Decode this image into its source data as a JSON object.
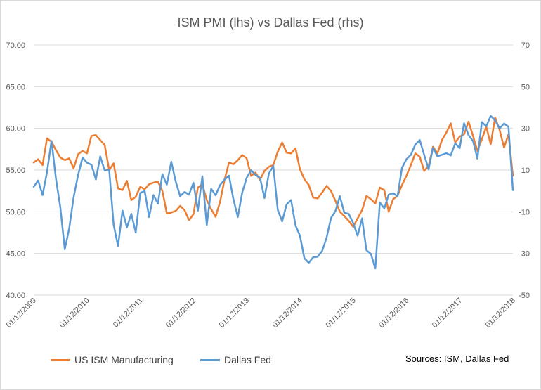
{
  "chart_data": {
    "type": "line",
    "title": "ISM PMI (lhs) vs Dallas Fed (rhs)",
    "x": [
      "01/12/2009",
      "01/01/2010",
      "01/02/2010",
      "01/03/2010",
      "01/04/2010",
      "01/05/2010",
      "01/06/2010",
      "01/07/2010",
      "01/08/2010",
      "01/09/2010",
      "01/10/2010",
      "01/11/2010",
      "01/12/2010",
      "01/01/2011",
      "01/02/2011",
      "01/03/2011",
      "01/04/2011",
      "01/05/2011",
      "01/06/2011",
      "01/07/2011",
      "01/08/2011",
      "01/09/2011",
      "01/10/2011",
      "01/11/2011",
      "01/12/2011",
      "01/01/2012",
      "01/02/2012",
      "01/03/2012",
      "01/04/2012",
      "01/05/2012",
      "01/06/2012",
      "01/07/2012",
      "01/08/2012",
      "01/09/2012",
      "01/10/2012",
      "01/11/2012",
      "01/12/2012",
      "01/01/2013",
      "01/02/2013",
      "01/03/2013",
      "01/04/2013",
      "01/05/2013",
      "01/06/2013",
      "01/07/2013",
      "01/08/2013",
      "01/09/2013",
      "01/10/2013",
      "01/11/2013",
      "01/12/2013",
      "01/01/2014",
      "01/02/2014",
      "01/03/2014",
      "01/04/2014",
      "01/05/2014",
      "01/06/2014",
      "01/07/2014",
      "01/08/2014",
      "01/09/2014",
      "01/10/2014",
      "01/11/2014",
      "01/12/2014",
      "01/01/2015",
      "01/02/2015",
      "01/03/2015",
      "01/04/2015",
      "01/05/2015",
      "01/06/2015",
      "01/07/2015",
      "01/08/2015",
      "01/09/2015",
      "01/10/2015",
      "01/11/2015",
      "01/12/2015",
      "01/01/2016",
      "01/02/2016",
      "01/03/2016",
      "01/04/2016",
      "01/05/2016",
      "01/06/2016",
      "01/07/2016",
      "01/08/2016",
      "01/09/2016",
      "01/10/2016",
      "01/11/2016",
      "01/12/2016",
      "01/01/2017",
      "01/02/2017",
      "01/03/2017",
      "01/04/2017",
      "01/05/2017",
      "01/06/2017",
      "01/07/2017",
      "01/08/2017",
      "01/09/2017",
      "01/10/2017",
      "01/11/2017",
      "01/12/2017",
      "01/01/2018",
      "01/02/2018",
      "01/03/2018",
      "01/04/2018",
      "01/05/2018",
      "01/06/2018",
      "01/07/2018",
      "01/08/2018",
      "01/09/2018",
      "01/10/2018",
      "01/11/2018",
      "01/12/2018"
    ],
    "x_tick_labels": [
      "01/12/2009",
      "01/12/2010",
      "01/12/2011",
      "01/12/2012",
      "01/12/2013",
      "01/12/2014",
      "01/12/2015",
      "01/12/2016",
      "01/12/2017",
      "01/12/2018"
    ],
    "y_left": {
      "ylim": [
        40,
        70
      ],
      "ticks": [
        "40.00",
        "45.00",
        "50.00",
        "55.00",
        "60.00",
        "65.00",
        "70.00"
      ]
    },
    "y_right": {
      "ylim": [
        -50,
        70
      ],
      "ticks": [
        "-50",
        "-30",
        "-10",
        "10",
        "30",
        "50",
        "70"
      ]
    },
    "grid": true,
    "legend_position": "bottom-left",
    "series": [
      {
        "name": "US ISM Manufacturing",
        "axis": "left",
        "color": "#ED7D31",
        "values": [
          55.9,
          56.3,
          55.6,
          58.8,
          58.4,
          57.4,
          56.5,
          56.2,
          56.4,
          55.2,
          56.9,
          57.3,
          57.0,
          59.1,
          59.2,
          58.6,
          58.0,
          55.0,
          55.8,
          52.8,
          52.6,
          53.7,
          51.4,
          51.8,
          53.0,
          52.7,
          53.3,
          53.5,
          53.6,
          52.5,
          49.8,
          49.9,
          50.1,
          50.7,
          50.2,
          49.0,
          49.7,
          52.9,
          53.3,
          51.4,
          50.3,
          49.4,
          51.2,
          53.8,
          55.9,
          55.7,
          56.2,
          56.8,
          56.4,
          54.3,
          54.7,
          53.8,
          54.9,
          55.4,
          55.6,
          57.2,
          58.3,
          57.1,
          57.0,
          57.6,
          55.1,
          53.9,
          53.2,
          51.7,
          51.6,
          52.3,
          53.1,
          52.5,
          51.3,
          50.0,
          49.5,
          48.9,
          48.2,
          49.2,
          50.2,
          51.9,
          51.5,
          51.0,
          52.9,
          52.6,
          50.0,
          51.5,
          51.9,
          53.2,
          54.3,
          55.6,
          57.0,
          56.6,
          54.9,
          55.5,
          57.8,
          57.0,
          58.6,
          59.5,
          60.6,
          58.3,
          59.0,
          59.3,
          60.8,
          59.1,
          57.3,
          58.7,
          60.2,
          58.1,
          61.3,
          59.8,
          57.7,
          59.3,
          54.3
        ]
      },
      {
        "name": "Dallas Fed",
        "axis": "right",
        "color": "#5B9BD5",
        "values": [
          2.0,
          5.0,
          -2.0,
          9.0,
          24.0,
          6.0,
          -8.0,
          -28.0,
          -18.0,
          -3.0,
          7.5,
          16.0,
          13.5,
          12.6,
          5.5,
          16.5,
          9.8,
          10.2,
          -16.2,
          -26.5,
          -9.4,
          -17.5,
          -11.0,
          -20.0,
          -1.0,
          0.0,
          -12.5,
          -2.0,
          -6.1,
          8.0,
          3.0,
          14.0,
          4.5,
          -2.5,
          -0.5,
          -1.8,
          3.9,
          -9.5,
          7.0,
          -16.4,
          1.0,
          -2.1,
          2.8,
          5.4,
          7.3,
          -4.0,
          -12.5,
          -0.7,
          6.3,
          9.9,
          7.6,
          6.3,
          -3.4,
          8.3,
          12.0,
          -9.0,
          -14.6,
          -6.5,
          -4.4,
          -16.6,
          -21.5,
          -32.3,
          -34.5,
          -31.8,
          -31.6,
          -28.8,
          -22.5,
          -13.0,
          -9.7,
          -2.5,
          -10.5,
          -11.0,
          -15.5,
          -21.5,
          -13.2,
          -28.5,
          -30.2,
          -37.2,
          -5.5,
          -8.4,
          -1.8,
          -1.1,
          -2.6,
          11.0,
          15.2,
          17.3,
          22.2,
          24.4,
          17.3,
          10.4,
          20.7,
          16.6,
          17.3,
          18.1,
          17.0,
          22.8,
          20.5,
          32.5,
          26.8,
          24.0,
          15.5,
          33.0,
          31.0,
          36.0,
          33.8,
          30.0,
          32.3,
          30.8,
          0.4
        ]
      }
    ]
  },
  "legend": {
    "items": [
      {
        "label": "US ISM Manufacturing",
        "color": "#ED7D31"
      },
      {
        "label": "Dallas Fed",
        "color": "#5B9BD5"
      }
    ]
  },
  "sources": "Sources: ISM, Dallas Fed",
  "colors": {
    "grid": "#d9d9d9",
    "axis_text": "#595959"
  }
}
